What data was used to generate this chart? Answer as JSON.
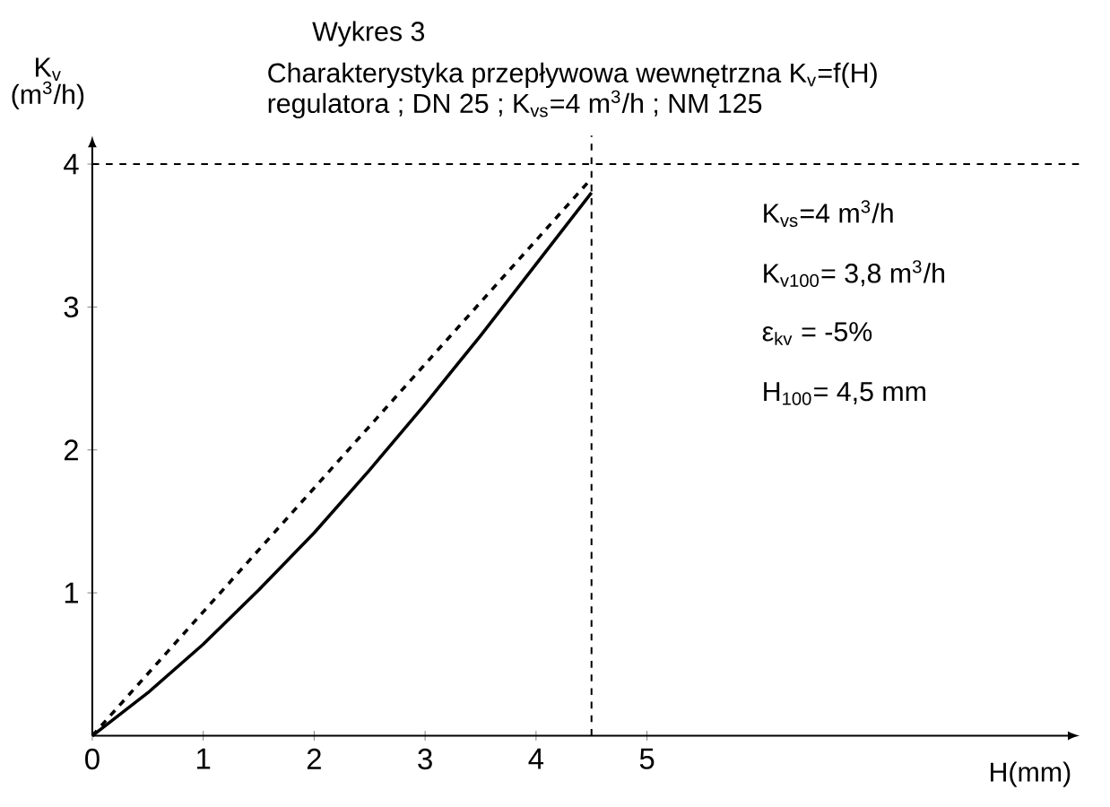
{
  "chart_data": {
    "type": "line",
    "title": "Wykres 3",
    "subtitle": "Charakterystyka przepływowa wewnętrzna K$_{v}$=f(H) regulatora ; DN 25 ; K$_{vs}$=4 m$^{3}$/h ; NM 125",
    "xlabel": "H(mm)",
    "ylabel": "K$_{v}$ (m$^{3}$/h)",
    "xlim": [
      0,
      8.9
    ],
    "ylim": [
      0,
      4.2
    ],
    "xticks": [
      0,
      1,
      2,
      3,
      4,
      5
    ],
    "yticks": [
      1,
      2,
      3,
      4
    ],
    "series": [
      {
        "color": "#000000",
        "line_style": "solid",
        "x": [
          0,
          0.5,
          1,
          1.5,
          2,
          2.5,
          3,
          3.5,
          4,
          4.5
        ],
        "values": [
          0,
          0.3,
          0.64,
          1.02,
          1.42,
          1.86,
          2.32,
          2.8,
          3.3,
          3.8
        ]
      },
      {
        "color": "#000000",
        "line_style": "dashed",
        "x": [
          0,
          4.5
        ],
        "values": [
          0,
          3.9
        ]
      }
    ],
    "ref_lines": [
      {
        "axis": "y",
        "value": 4,
        "line_style": "dashed"
      },
      {
        "axis": "x",
        "value": 4.5,
        "line_style": "dashed"
      }
    ],
    "annotations": [
      "K$_{vs}$=4 m$^{3}$/h",
      "K$_{v100}$= 3,8 m$^{3}$/h",
      "ε$_{kv}$ = -5%",
      "H$_{100}$= 4,5 mm"
    ],
    "grid": false,
    "marker": "none"
  }
}
